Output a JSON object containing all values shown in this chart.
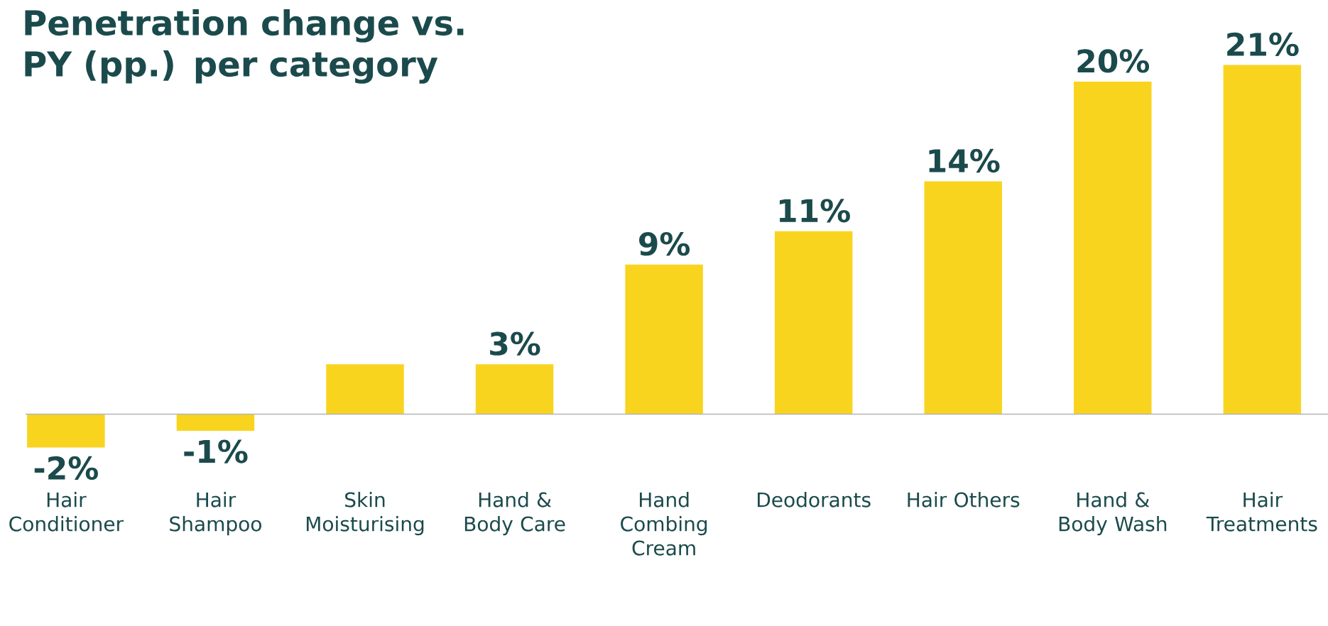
{
  "chart_data": {
    "type": "bar",
    "title": "Penetration change vs. PY (pp.) per category",
    "categories": [
      "Hair Conditioner",
      "Hair Shampoo",
      "Skin Moisturising",
      "Hand & Body Care",
      "Hand Combing Cream",
      "Deodorants",
      "Hair Others",
      "Hand & Body Wash",
      "Hair Treatments"
    ],
    "values": [
      -2,
      -1,
      3,
      3,
      9,
      11,
      14,
      20,
      21
    ],
    "value_labels": [
      "-2%",
      "-1%",
      null,
      "3%",
      "9%",
      "11%",
      "14%",
      "20%",
      "21%"
    ],
    "color": "#f9d41f"
  }
}
